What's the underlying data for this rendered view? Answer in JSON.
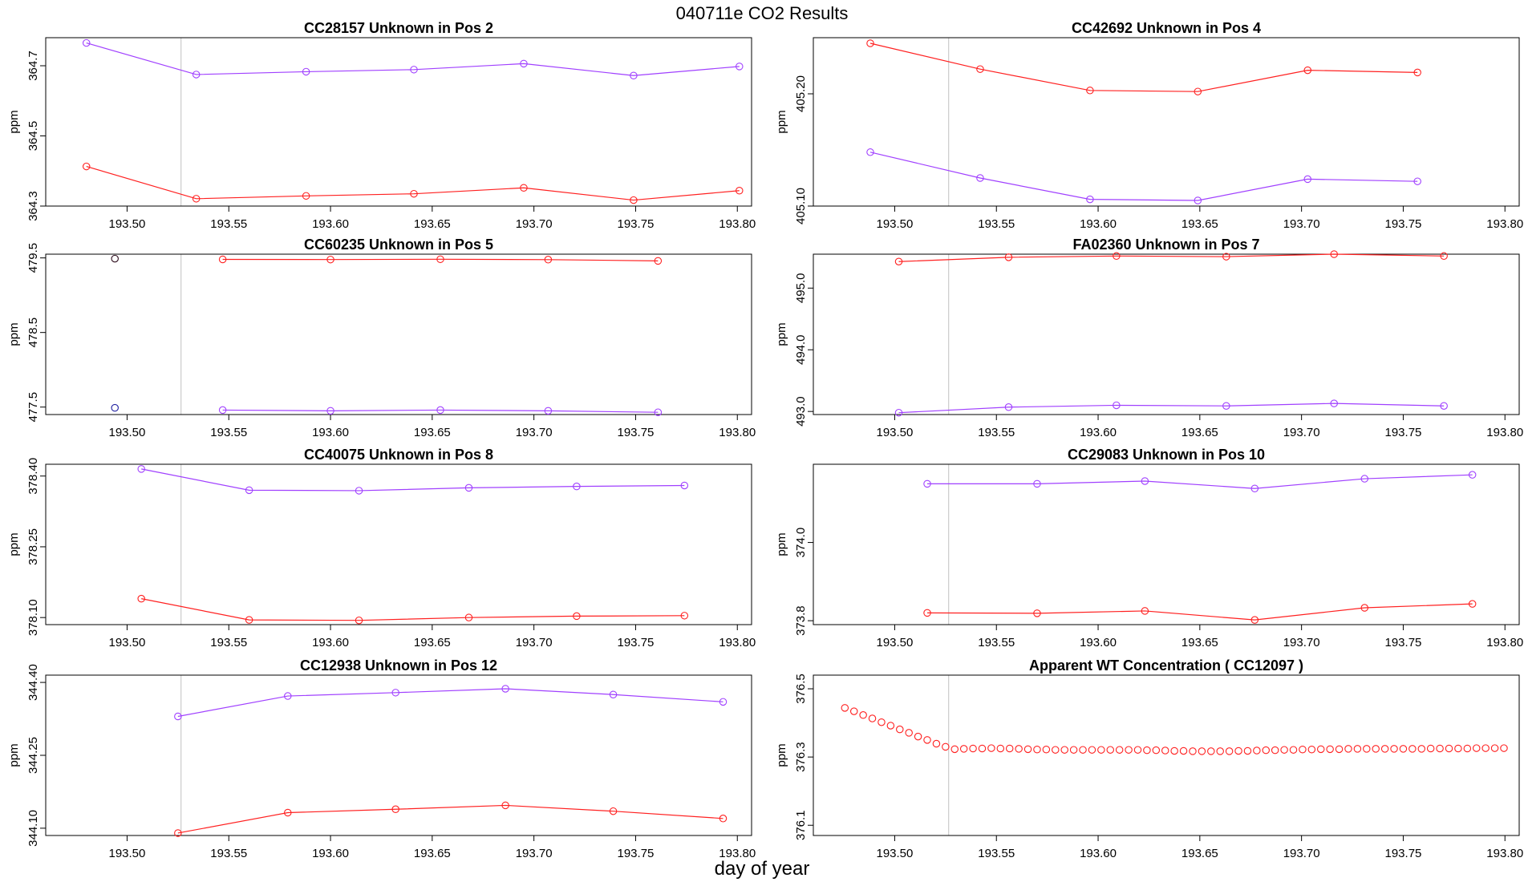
{
  "figure": {
    "title": "040711e  CO2 Results",
    "xlabel": "day of year"
  },
  "colors": {
    "red": "#ff2020",
    "purple": "#a040ff",
    "dark": "#301020",
    "navy": "#2020a0",
    "refline": "#cfcfcf"
  },
  "chart_data": [
    {
      "type": "line",
      "title": "CC28157    Unknown in Pos 2",
      "ylabel": "ppm",
      "xlim": [
        193.46,
        193.807
      ],
      "ylim": [
        364.3,
        364.78
      ],
      "xticks": [
        "193.50",
        "193.55",
        "193.60",
        "193.65",
        "193.70",
        "193.75",
        "193.80"
      ],
      "xtick_values": [
        193.5,
        193.55,
        193.6,
        193.65,
        193.7,
        193.75,
        193.8
      ],
      "yticks": [
        "364.3",
        "364.5",
        "364.7"
      ],
      "ytick_values": [
        364.3,
        364.5,
        364.7
      ],
      "ref_x": 193.5265,
      "series": [
        {
          "name": "purple",
          "color": "purple",
          "lines": true,
          "x": [
            193.48,
            193.534,
            193.588,
            193.641,
            193.695,
            193.749,
            193.801
          ],
          "y": [
            364.765,
            364.675,
            364.683,
            364.689,
            364.706,
            364.672,
            364.698
          ]
        },
        {
          "name": "red",
          "color": "red",
          "lines": true,
          "x": [
            193.48,
            193.534,
            193.588,
            193.641,
            193.695,
            193.749,
            193.801
          ],
          "y": [
            364.413,
            364.321,
            364.329,
            364.335,
            364.352,
            364.317,
            364.344
          ]
        }
      ]
    },
    {
      "type": "line",
      "title": "CC42692    Unknown in Pos 4",
      "ylabel": "ppm",
      "xlim": [
        193.46,
        193.807
      ],
      "ylim": [
        405.1,
        405.25
      ],
      "xticks": [
        "193.50",
        "193.55",
        "193.60",
        "193.65",
        "193.70",
        "193.75",
        "193.80"
      ],
      "xtick_values": [
        193.5,
        193.55,
        193.6,
        193.65,
        193.7,
        193.75,
        193.8
      ],
      "yticks": [
        "405.10",
        "405.20"
      ],
      "ytick_values": [
        405.1,
        405.2
      ],
      "ref_x": 193.5265,
      "series": [
        {
          "name": "red",
          "color": "red",
          "lines": true,
          "x": [
            193.488,
            193.542,
            193.596,
            193.649,
            193.703,
            193.757
          ],
          "y": [
            405.245,
            405.222,
            405.203,
            405.202,
            405.221,
            405.219
          ]
        },
        {
          "name": "purple",
          "color": "purple",
          "lines": true,
          "x": [
            193.488,
            193.542,
            193.596,
            193.649,
            193.703,
            193.757
          ],
          "y": [
            405.148,
            405.125,
            405.106,
            405.105,
            405.124,
            405.122
          ]
        }
      ]
    },
    {
      "type": "line",
      "title": "CC60235    Unknown in Pos 5",
      "ylabel": "ppm",
      "xlim": [
        193.46,
        193.807
      ],
      "ylim": [
        477.4,
        479.55
      ],
      "xticks": [
        "193.50",
        "193.55",
        "193.60",
        "193.65",
        "193.70",
        "193.75",
        "193.80"
      ],
      "xtick_values": [
        193.5,
        193.55,
        193.6,
        193.65,
        193.7,
        193.75,
        193.8
      ],
      "yticks": [
        "477.5",
        "478.5",
        "479.5"
      ],
      "ytick_values": [
        477.5,
        478.5,
        479.5
      ],
      "ref_x": 193.5265,
      "series": [
        {
          "name": "red",
          "color": "red",
          "lines": true,
          "x": [
            193.547,
            193.6,
            193.654,
            193.707,
            193.761
          ],
          "y": [
            479.48,
            479.478,
            479.482,
            479.477,
            479.46
          ]
        },
        {
          "name": "purple",
          "color": "purple",
          "lines": true,
          "x": [
            193.547,
            193.6,
            193.654,
            193.707,
            193.761
          ],
          "y": [
            477.46,
            477.45,
            477.46,
            477.45,
            477.43
          ]
        },
        {
          "name": "first-upper",
          "color": "dark",
          "lines": false,
          "x": [
            193.494
          ],
          "y": [
            479.49
          ]
        },
        {
          "name": "first-lower",
          "color": "navy",
          "lines": false,
          "x": [
            193.494
          ],
          "y": [
            477.49
          ]
        }
      ]
    },
    {
      "type": "line",
      "title": "FA02360    Unknown in Pos 7",
      "ylabel": "ppm",
      "xlim": [
        193.46,
        193.807
      ],
      "ylim": [
        492.95,
        495.55
      ],
      "xticks": [
        "193.50",
        "193.55",
        "193.60",
        "193.65",
        "193.70",
        "193.75",
        "193.80"
      ],
      "xtick_values": [
        193.5,
        193.55,
        193.6,
        193.65,
        193.7,
        193.75,
        193.8
      ],
      "yticks": [
        "493.0",
        "494.0",
        "495.0"
      ],
      "ytick_values": [
        493.0,
        494.0,
        495.0
      ],
      "ref_x": 193.5265,
      "series": [
        {
          "name": "red",
          "color": "red",
          "lines": true,
          "x": [
            193.502,
            193.556,
            193.609,
            193.663,
            193.716,
            193.77
          ],
          "y": [
            495.43,
            495.5,
            495.52,
            495.51,
            495.55,
            495.52
          ]
        },
        {
          "name": "purple",
          "color": "purple",
          "lines": true,
          "x": [
            193.502,
            193.556,
            193.609,
            193.663,
            193.716,
            193.77
          ],
          "y": [
            492.98,
            493.07,
            493.1,
            493.09,
            493.13,
            493.09
          ]
        }
      ]
    },
    {
      "type": "line",
      "title": "CC40075    Unknown in Pos 8",
      "ylabel": "ppm",
      "xlim": [
        193.46,
        193.807
      ],
      "ylim": [
        378.085,
        378.425
      ],
      "xticks": [
        "193.50",
        "193.55",
        "193.60",
        "193.65",
        "193.70",
        "193.75",
        "193.80"
      ],
      "xtick_values": [
        193.5,
        193.55,
        193.6,
        193.65,
        193.7,
        193.75,
        193.8
      ],
      "yticks": [
        "378.10",
        "378.25",
        "378.40"
      ],
      "ytick_values": [
        378.1,
        378.25,
        378.4
      ],
      "ref_x": 193.5265,
      "series": [
        {
          "name": "purple",
          "color": "purple",
          "lines": true,
          "x": [
            193.507,
            193.56,
            193.614,
            193.668,
            193.721,
            193.774
          ],
          "y": [
            378.415,
            378.37,
            378.369,
            378.375,
            378.378,
            378.38
          ]
        },
        {
          "name": "red",
          "color": "red",
          "lines": true,
          "x": [
            193.507,
            193.56,
            193.614,
            193.668,
            193.721,
            193.774
          ],
          "y": [
            378.14,
            378.095,
            378.094,
            378.1,
            378.103,
            378.104
          ]
        }
      ]
    },
    {
      "type": "line",
      "title": "CC29083    Unknown in Pos 10",
      "ylabel": "ppm",
      "xlim": [
        193.46,
        193.807
      ],
      "ylim": [
        373.79,
        374.2
      ],
      "xticks": [
        "193.50",
        "193.55",
        "193.60",
        "193.65",
        "193.70",
        "193.75",
        "193.80"
      ],
      "xtick_values": [
        193.5,
        193.55,
        193.6,
        193.65,
        193.7,
        193.75,
        193.8
      ],
      "yticks": [
        "373.8",
        "374.0"
      ],
      "ytick_values": [
        373.8,
        374.0
      ],
      "ref_x": 193.5265,
      "series": [
        {
          "name": "purple",
          "color": "purple",
          "lines": true,
          "x": [
            193.516,
            193.57,
            193.623,
            193.677,
            193.731,
            193.784
          ],
          "y": [
            374.15,
            374.15,
            374.157,
            374.138,
            374.163,
            374.173
          ]
        },
        {
          "name": "red",
          "color": "red",
          "lines": true,
          "x": [
            193.516,
            193.57,
            193.623,
            193.677,
            193.731,
            193.784
          ],
          "y": [
            373.82,
            373.819,
            373.825,
            373.802,
            373.833,
            373.843
          ]
        }
      ]
    },
    {
      "type": "line",
      "title": "CC12938    Unknown in Pos 12",
      "ylabel": "ppm",
      "xlim": [
        193.46,
        193.807
      ],
      "ylim": [
        344.085,
        344.415
      ],
      "xticks": [
        "193.50",
        "193.55",
        "193.60",
        "193.65",
        "193.70",
        "193.75",
        "193.80"
      ],
      "xtick_values": [
        193.5,
        193.55,
        193.6,
        193.65,
        193.7,
        193.75,
        193.8
      ],
      "yticks": [
        "344.10",
        "344.25",
        "344.40"
      ],
      "ytick_values": [
        344.1,
        344.25,
        344.4
      ],
      "ref_x": 193.5265,
      "series": [
        {
          "name": "purple",
          "color": "purple",
          "lines": true,
          "x": [
            193.525,
            193.579,
            193.632,
            193.686,
            193.739,
            193.793
          ],
          "y": [
            344.33,
            344.372,
            344.379,
            344.387,
            344.375,
            344.36
          ]
        },
        {
          "name": "red",
          "color": "red",
          "lines": true,
          "x": [
            193.525,
            193.579,
            193.632,
            193.686,
            193.739,
            193.793
          ],
          "y": [
            344.09,
            344.132,
            344.139,
            344.147,
            344.135,
            344.12
          ]
        }
      ]
    },
    {
      "type": "scatter",
      "title": "Apparent WT Concentration ( CC12097 )",
      "ylabel": "ppm",
      "xlim": [
        193.46,
        193.807
      ],
      "ylim": [
        376.07,
        376.54
      ],
      "xticks": [
        "193.50",
        "193.55",
        "193.60",
        "193.65",
        "193.70",
        "193.75",
        "193.80"
      ],
      "xtick_values": [
        193.5,
        193.55,
        193.6,
        193.65,
        193.7,
        193.75,
        193.8
      ],
      "yticks": [
        "376.1",
        "376.3",
        "376.5"
      ],
      "ytick_values": [
        376.1,
        376.3,
        376.5
      ],
      "ref_x": 193.5265,
      "series": [
        {
          "name": "red",
          "color": "red",
          "lines": false,
          "x": [
            193.4755,
            193.48,
            193.4845,
            193.489,
            193.4935,
            193.498,
            193.5025,
            193.507,
            193.5115,
            193.516,
            193.5205,
            193.525,
            193.5295,
            193.534,
            193.5385,
            193.543,
            193.5475,
            193.552,
            193.5565,
            193.561,
            193.5655,
            193.57,
            193.5745,
            193.579,
            193.5835,
            193.588,
            193.5925,
            193.597,
            193.6015,
            193.606,
            193.6105,
            193.615,
            193.6195,
            193.624,
            193.6285,
            193.633,
            193.6375,
            193.642,
            193.6465,
            193.651,
            193.6555,
            193.66,
            193.6645,
            193.669,
            193.6735,
            193.678,
            193.6825,
            193.687,
            193.6915,
            193.696,
            193.7005,
            193.705,
            193.7095,
            193.714,
            193.7185,
            193.723,
            193.7275,
            193.732,
            193.7365,
            193.741,
            193.7455,
            193.75,
            193.7545,
            193.759,
            193.7635,
            193.768,
            193.7725,
            193.777,
            193.7815,
            193.786,
            193.7905,
            193.795,
            193.7995
          ],
          "y": [
            376.444,
            376.434,
            376.423,
            376.413,
            376.402,
            376.392,
            376.381,
            376.371,
            376.36,
            376.35,
            376.339,
            376.33,
            376.323,
            376.324,
            376.325,
            376.325,
            376.326,
            376.325,
            376.325,
            376.324,
            376.323,
            376.322,
            376.322,
            376.321,
            376.321,
            376.321,
            376.321,
            376.321,
            376.321,
            376.321,
            376.321,
            376.321,
            376.321,
            376.32,
            376.32,
            376.319,
            376.318,
            376.318,
            376.317,
            376.317,
            376.317,
            376.317,
            376.317,
            376.318,
            376.318,
            376.319,
            376.32,
            376.32,
            376.321,
            376.321,
            376.322,
            376.322,
            376.323,
            376.323,
            376.323,
            376.324,
            376.324,
            376.324,
            376.324,
            376.324,
            376.324,
            376.324,
            376.324,
            376.324,
            376.325,
            376.325,
            376.325,
            376.325,
            376.325,
            376.326,
            376.326,
            376.326,
            376.326
          ]
        }
      ]
    }
  ]
}
